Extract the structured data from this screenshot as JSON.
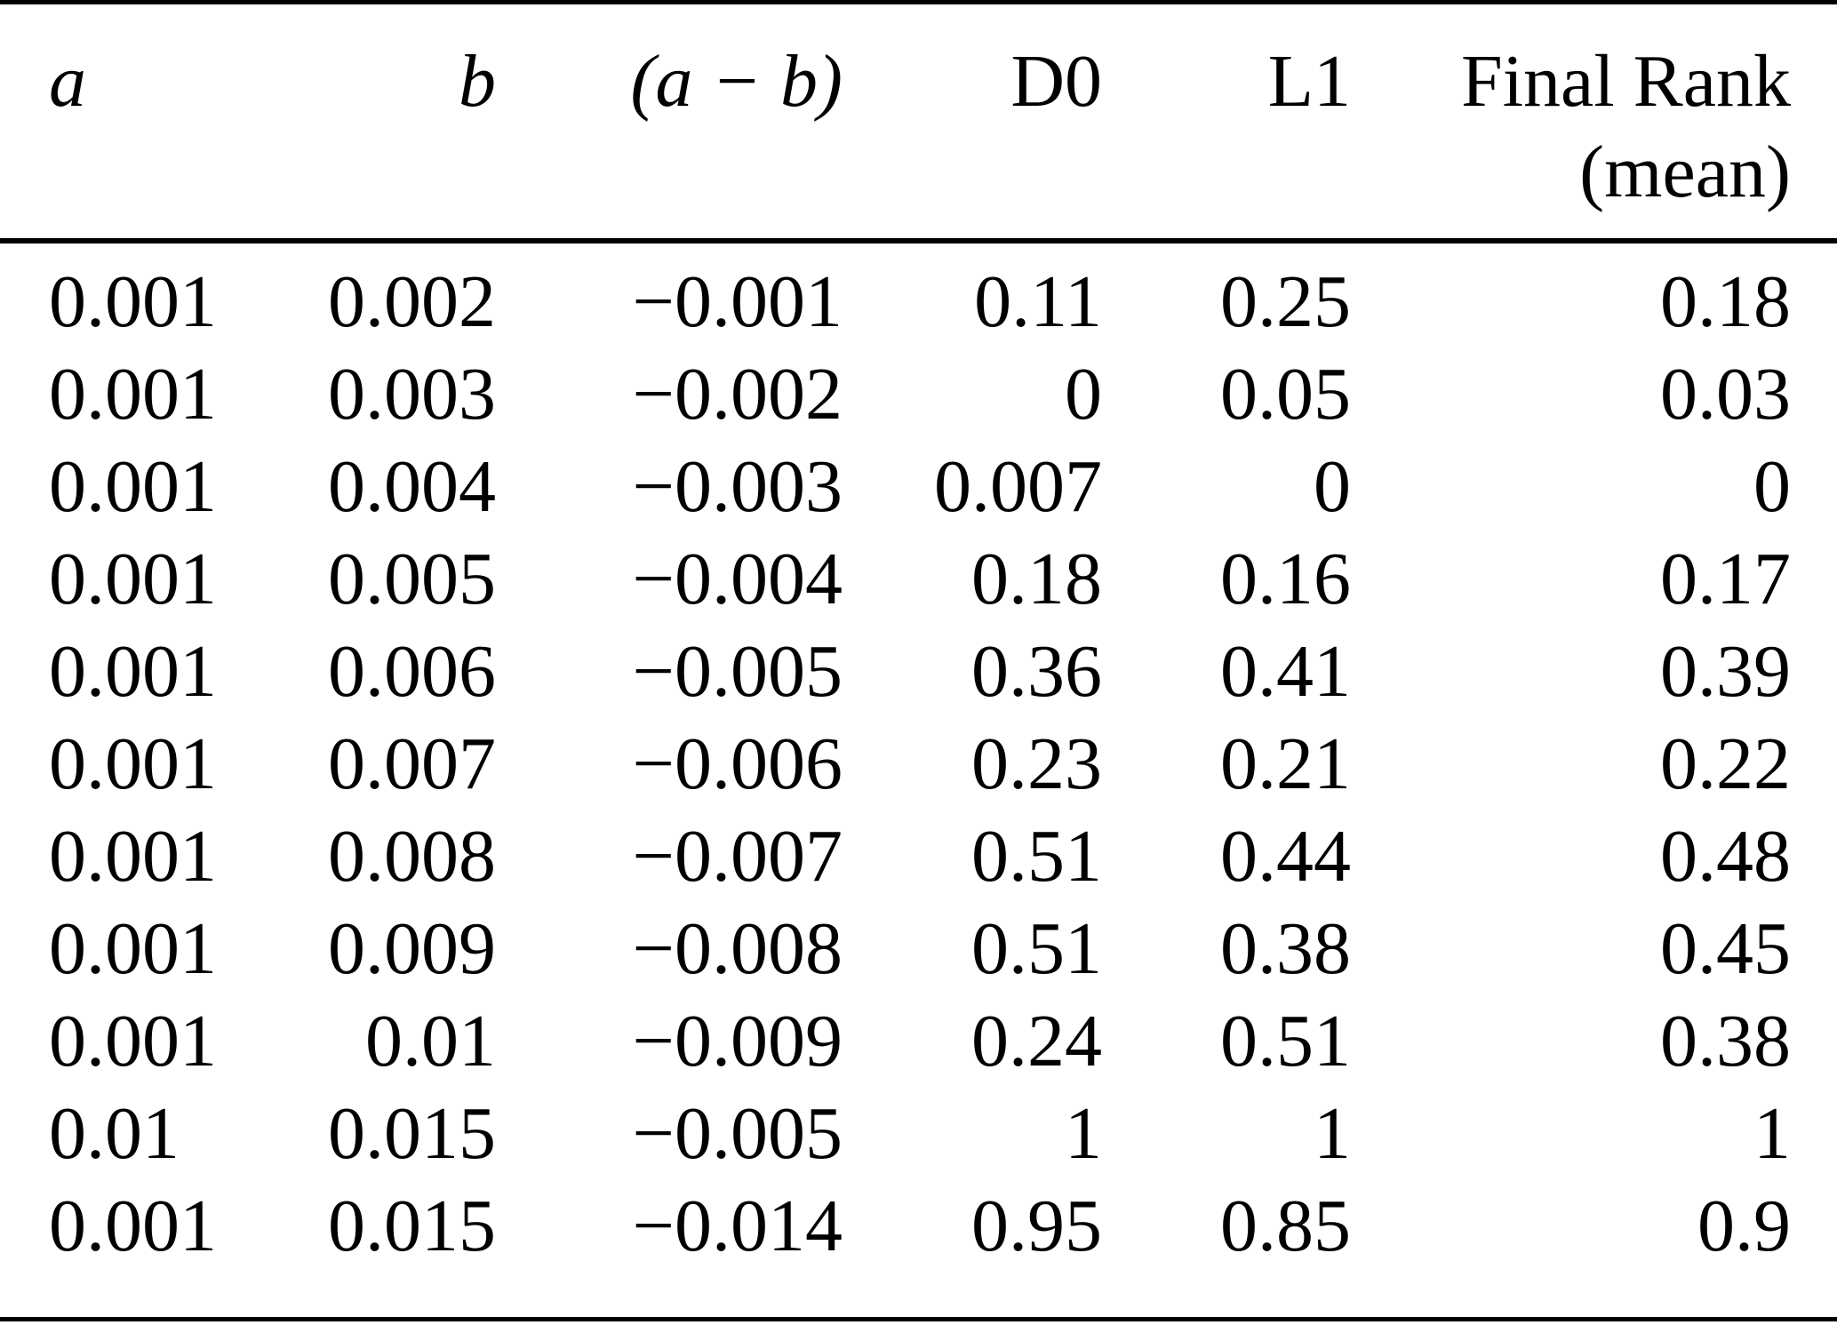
{
  "colors": {
    "background": "#ffffff",
    "text": "#000000",
    "rule": "#000000"
  },
  "table": {
    "header": {
      "a": "a",
      "b": "b",
      "a_minus_b": "(a − b)",
      "d0": "D0",
      "l1": "L1",
      "final_line1": "Final Rank",
      "final_line2": "(mean)"
    },
    "column_keys": [
      "a",
      "b",
      "a-minus-b",
      "d0",
      "l1",
      "final-rank-mean"
    ],
    "rows": [
      [
        "0.001",
        "0.002",
        "−0.001",
        "0.11",
        "0.25",
        "0.18"
      ],
      [
        "0.001",
        "0.003",
        "−0.002",
        "0",
        "0.05",
        "0.03"
      ],
      [
        "0.001",
        "0.004",
        "−0.003",
        "0.007",
        "0",
        "0"
      ],
      [
        "0.001",
        "0.005",
        "−0.004",
        "0.18",
        "0.16",
        "0.17"
      ],
      [
        "0.001",
        "0.006",
        "−0.005",
        "0.36",
        "0.41",
        "0.39"
      ],
      [
        "0.001",
        "0.007",
        "−0.006",
        "0.23",
        "0.21",
        "0.22"
      ],
      [
        "0.001",
        "0.008",
        "−0.007",
        "0.51",
        "0.44",
        "0.48"
      ],
      [
        "0.001",
        "0.009",
        "−0.008",
        "0.51",
        "0.38",
        "0.45"
      ],
      [
        "0.001",
        "0.01",
        "−0.009",
        "0.24",
        "0.51",
        "0.38"
      ],
      [
        "0.01",
        "0.015",
        "−0.005",
        "1",
        "1",
        "1"
      ],
      [
        "0.001",
        "0.015",
        "−0.014",
        "0.95",
        "0.85",
        "0.9"
      ]
    ]
  }
}
